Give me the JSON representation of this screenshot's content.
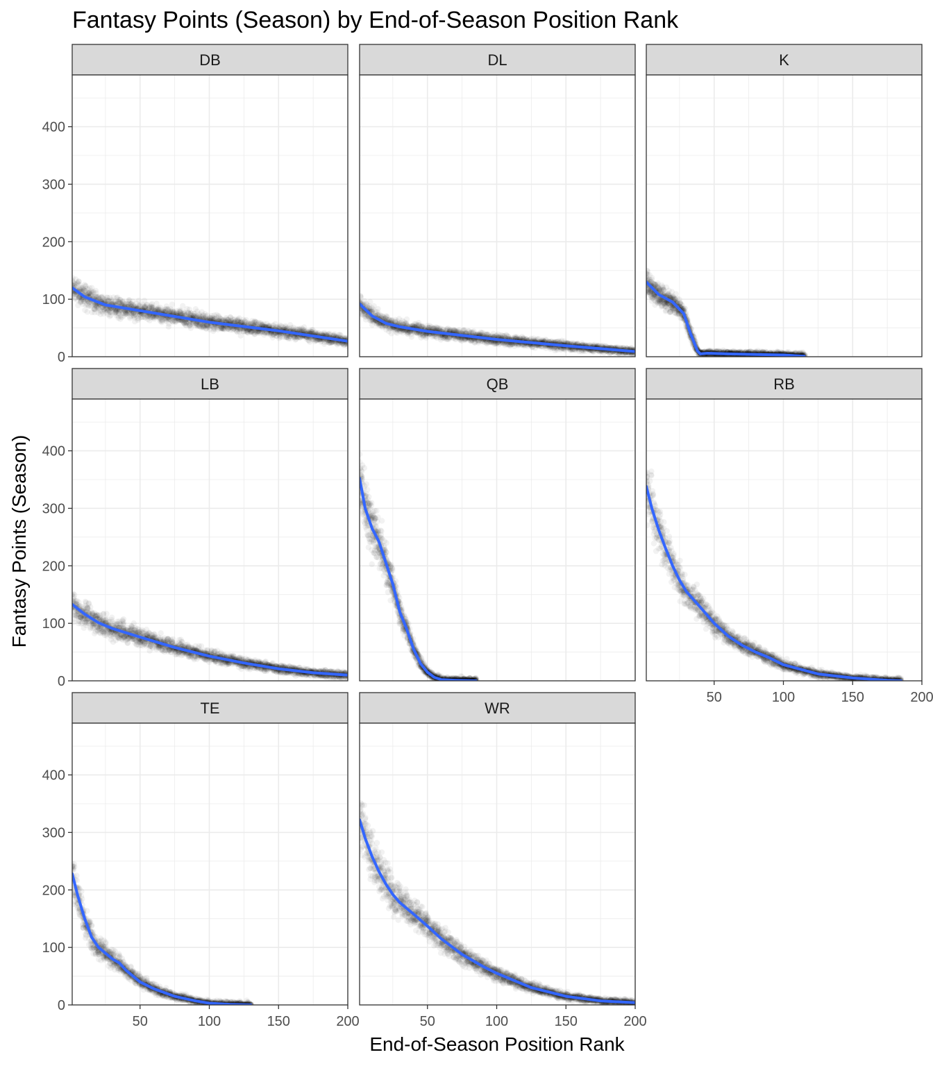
{
  "chart_data": {
    "type": "scatter",
    "title": "Fantasy Points (Season) by End-of-Season Position Rank",
    "xlabel": "End-of-Season Position Rank",
    "ylabel": "Fantasy Points (Season)",
    "xlim": [
      1,
      200
    ],
    "ylim": [
      0,
      490
    ],
    "x_ticks": [
      50,
      100,
      150,
      200
    ],
    "y_ticks": [
      0,
      100,
      200,
      300,
      400
    ],
    "grid": true,
    "layout": "faceted 3 columns, 3 rows",
    "colors": {
      "points": "#000000",
      "smooth_line": "#3366FF",
      "strip_fill": "#d9d9d9",
      "grid": "#ebebeb"
    },
    "facets": [
      {
        "name": "DB",
        "max_rank": 200,
        "smooth": {
          "x": [
            1,
            10,
            25,
            50,
            100,
            150,
            200
          ],
          "y": [
            120,
            104,
            90,
            80,
            60,
            45,
            27
          ]
        }
      },
      {
        "name": "DL",
        "max_rank": 200,
        "smooth": {
          "x": [
            1,
            10,
            20,
            30,
            50,
            100,
            150,
            200
          ],
          "y": [
            92,
            71,
            58,
            52,
            44,
            30,
            19,
            9
          ]
        }
      },
      {
        "name": "K",
        "max_rank": 115,
        "smooth": {
          "x": [
            1,
            10,
            20,
            28,
            33,
            38,
            40,
            45,
            60,
            80,
            100,
            115
          ],
          "y": [
            130,
            108,
            95,
            75,
            40,
            10,
            5,
            6,
            5,
            4,
            3,
            1
          ]
        }
      },
      {
        "name": "LB",
        "max_rank": 200,
        "smooth": {
          "x": [
            1,
            10,
            20,
            30,
            50,
            75,
            100,
            125,
            150,
            175,
            200
          ],
          "y": [
            133,
            116,
            101,
            91,
            76,
            58,
            43,
            31,
            21,
            14,
            10
          ]
        }
      },
      {
        "name": "QB",
        "max_rank": 85,
        "smooth": {
          "x": [
            1,
            5,
            10,
            15,
            20,
            25,
            30,
            35,
            40,
            45,
            50,
            55,
            60,
            70,
            85
          ],
          "y": [
            352,
            300,
            265,
            242,
            205,
            168,
            120,
            90,
            55,
            30,
            15,
            6,
            2,
            1,
            0
          ]
        }
      },
      {
        "name": "RB",
        "max_rank": 185,
        "smooth": {
          "x": [
            1,
            5,
            10,
            15,
            20,
            25,
            30,
            40,
            50,
            60,
            70,
            80,
            90,
            100,
            125,
            150,
            175,
            185
          ],
          "y": [
            338,
            300,
            262,
            230,
            200,
            175,
            155,
            128,
            100,
            78,
            62,
            50,
            40,
            28,
            12,
            5,
            1,
            0
          ]
        }
      },
      {
        "name": "TE",
        "max_rank": 130,
        "smooth": {
          "x": [
            1,
            5,
            10,
            15,
            20,
            25,
            30,
            35,
            40,
            50,
            60,
            75,
            90,
            100,
            115,
            130
          ],
          "y": [
            228,
            190,
            150,
            118,
            100,
            90,
            80,
            73,
            60,
            40,
            28,
            15,
            7,
            3,
            1,
            0
          ]
        }
      },
      {
        "name": "WR",
        "max_rank": 200,
        "smooth": {
          "x": [
            1,
            5,
            10,
            15,
            20,
            25,
            30,
            40,
            50,
            60,
            75,
            90,
            100,
            125,
            150,
            175,
            200
          ],
          "y": [
            322,
            290,
            258,
            232,
            210,
            192,
            178,
            158,
            137,
            115,
            88,
            67,
            55,
            30,
            15,
            7,
            4
          ]
        }
      }
    ]
  }
}
